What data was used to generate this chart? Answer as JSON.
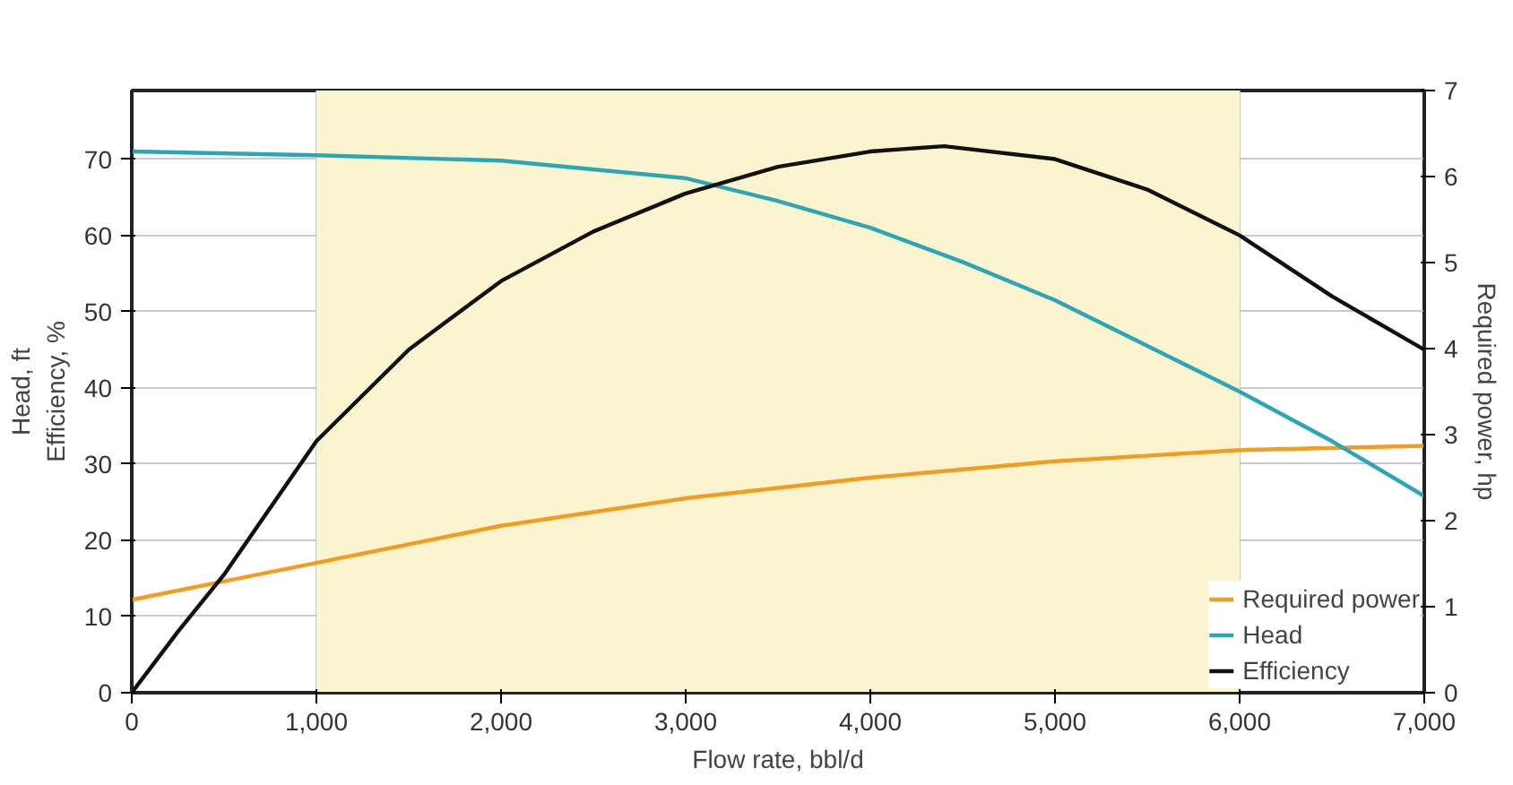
{
  "chart_data": {
    "type": "line",
    "xlabel": "Flow rate, bbl/d",
    "ylabel": "Head, ft\nEfficiency, %",
    "y2label": "Required power, hp",
    "xlim": [
      0,
      7000
    ],
    "xticks": [
      0,
      {
        "value": 1000,
        "label": "1,000"
      },
      {
        "value": 2000,
        "label": "2,000"
      },
      {
        "value": 3000,
        "label": "3,000"
      },
      {
        "value": 4000,
        "label": "4,000"
      },
      {
        "value": 5000,
        "label": "5,000"
      },
      {
        "value": 6000,
        "label": "6,000"
      },
      {
        "value": 7000,
        "label": "7,000"
      }
    ],
    "ylim": [
      0,
      79
    ],
    "yticks": [
      0,
      10,
      20,
      30,
      40,
      50,
      60,
      70
    ],
    "y2lim": [
      0,
      7
    ],
    "y2ticks": [
      0,
      1,
      2,
      3,
      4,
      5,
      6,
      7
    ],
    "bands": [
      {
        "axis": "x",
        "from": 1000,
        "to": 6000,
        "color": "#fbf5cf"
      }
    ],
    "grid": true,
    "legend": "bottom right",
    "line_style": "solid",
    "series": [
      {
        "name": "Required power",
        "color": "#f39c1f",
        "axis": "y2",
        "x": [
          0,
          1000,
          2000,
          3000,
          4000,
          5000,
          6000,
          7000
        ],
        "values": [
          1.08,
          1.51,
          1.94,
          2.26,
          2.5,
          2.69,
          2.82,
          2.87
        ]
      },
      {
        "name": "Head",
        "color": "#2aa6b6",
        "x": [
          0,
          1000,
          2000,
          3000,
          3500,
          4000,
          4500,
          5000,
          5500,
          6000,
          6500,
          7000
        ],
        "values": [
          71,
          70.5,
          69.8,
          67.5,
          64.5,
          61,
          56.5,
          51.5,
          45.5,
          39.5,
          33,
          25.8
        ]
      },
      {
        "name": "Efficiency",
        "color": "#111111",
        "x": [
          0,
          250,
          500,
          1000,
          1500,
          2000,
          2500,
          3000,
          3500,
          4000,
          4400,
          5000,
          5500,
          6000,
          6500,
          7000
        ],
        "values": [
          0,
          8,
          15.5,
          33,
          45,
          54,
          60.5,
          65.5,
          69,
          71,
          71.7,
          70,
          66,
          60,
          52,
          45
        ]
      }
    ]
  }
}
